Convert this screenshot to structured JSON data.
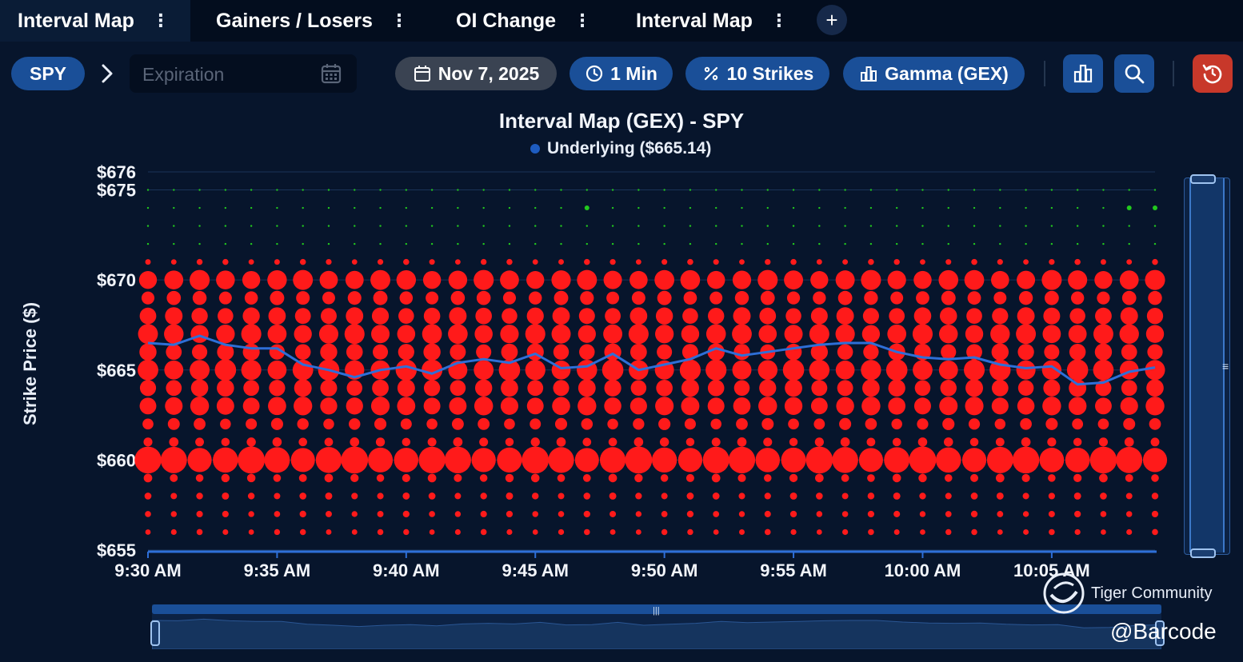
{
  "tabs": [
    {
      "label": "Interval Map",
      "active": true
    },
    {
      "label": "Gainers / Losers",
      "active": false
    },
    {
      "label": "OI Change",
      "active": false
    },
    {
      "label": "Interval Map",
      "active": false
    }
  ],
  "add_tab_label": "+",
  "tab_menu_glyph": "⋮",
  "toolbar": {
    "ticker": "SPY",
    "expiration_placeholder": "Expiration",
    "date": "Nov 7, 2025",
    "interval": "1 Min",
    "strikes": "10 Strikes",
    "metric": "Gamma (GEX)"
  },
  "icons": [
    "calendar-icon",
    "clock-icon",
    "percent-icon",
    "bar-chart-icon",
    "search-icon",
    "reset-icon",
    "chevron-right-icon"
  ],
  "colors": {
    "background": "#07152c",
    "accent": "#1a4f98",
    "reset": "#c8382a",
    "underlying_line": "#2e6fd8",
    "negative_gex": "#ff1a1a",
    "positive_gex": "#22c91e"
  },
  "watermark": {
    "text": "Tiger Community",
    "handle": "@Barcode"
  },
  "chart_data": {
    "type": "scatter",
    "title": "Interval Map (GEX) - SPY",
    "xlabel": "",
    "ylabel": "Strike Price ($)",
    "x_tick_labels": [
      "9:30 AM",
      "9:35 AM",
      "9:40 AM",
      "9:45 AM",
      "9:50 AM",
      "9:55 AM",
      "10:00 AM",
      "10:05 AM"
    ],
    "y_tick_labels": [
      "$676",
      "$675",
      "$670",
      "$665",
      "$660",
      "$655"
    ],
    "y_ticks": [
      676,
      675,
      670,
      665,
      660,
      655
    ],
    "ylim": [
      655,
      676
    ],
    "x_range_minutes": [
      0,
      39
    ],
    "legend": {
      "placement": "top-center",
      "entries": [
        "Underlying ($665.14)"
      ]
    },
    "grid": true,
    "underlying_series": {
      "name": "Underlying ($665.14)",
      "x_minutes": [
        0,
        1,
        2,
        3,
        4,
        5,
        6,
        7,
        8,
        9,
        10,
        11,
        12,
        13,
        14,
        15,
        16,
        17,
        18,
        19,
        20,
        21,
        22,
        23,
        24,
        25,
        26,
        27,
        28,
        29,
        30,
        31,
        32,
        33,
        34,
        35,
        36,
        37,
        38,
        39
      ],
      "price": [
        666.5,
        666.4,
        666.9,
        666.4,
        666.2,
        666.2,
        665.3,
        665.0,
        664.6,
        665.0,
        665.2,
        664.8,
        665.4,
        665.6,
        665.4,
        665.9,
        665.1,
        665.2,
        665.9,
        665.0,
        665.3,
        665.6,
        666.2,
        665.8,
        666.0,
        666.2,
        666.4,
        666.5,
        666.5,
        666.0,
        665.7,
        665.6,
        665.7,
        665.3,
        665.1,
        665.2,
        664.2,
        664.3,
        664.9,
        665.14
      ]
    },
    "gex_bubbles": {
      "description_sign": "red = negative gamma exposure, green = positive gamma exposure",
      "strikes": [
        675,
        674,
        673,
        672,
        671,
        670,
        669,
        668,
        667,
        666,
        665,
        664,
        663,
        662,
        661,
        660,
        659,
        658,
        657,
        656
      ],
      "relative_magnitude": [
        0.05,
        0.08,
        0.05,
        0.04,
        0.05,
        0.55,
        0.28,
        0.42,
        0.55,
        0.4,
        0.62,
        0.42,
        0.48,
        0.2,
        0.12,
        1.0,
        0.1,
        0.07,
        0.06,
        0.05
      ],
      "sign": [
        "pos",
        "pos",
        "pos",
        "pos",
        "neg",
        "neg",
        "neg",
        "neg",
        "neg",
        "neg",
        "neg",
        "neg",
        "neg",
        "neg",
        "neg",
        "neg",
        "neg",
        "neg",
        "neg",
        "neg"
      ],
      "highlighted_positive_at": [
        {
          "minute": 17,
          "strike": 674
        },
        {
          "minute": 38,
          "strike": 674
        },
        {
          "minute": 39,
          "strike": 674
        }
      ]
    }
  }
}
